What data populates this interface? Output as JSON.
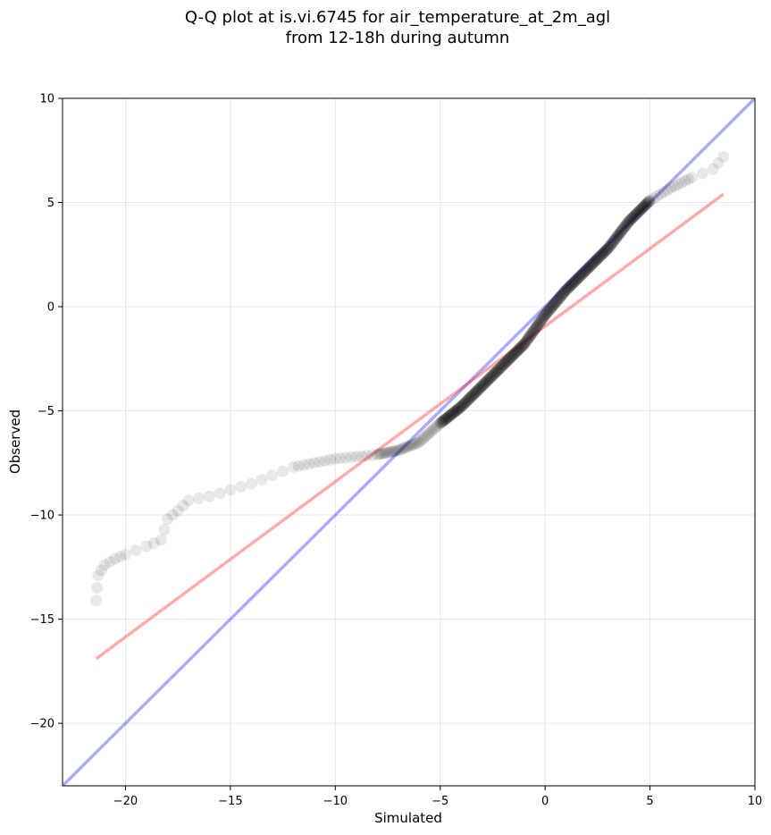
{
  "chart_data": {
    "type": "scatter",
    "title_line1": "Q-Q plot at is.vi.6745 for air_temperature_at_2m_agl",
    "title_line2": "from 12-18h during autumn",
    "xlabel": "Simulated",
    "ylabel": "Observed",
    "xlim": [
      -23,
      10
    ],
    "ylim": [
      -23,
      10
    ],
    "xticks": [
      -20,
      -15,
      -10,
      -5,
      0,
      5,
      10
    ],
    "yticks": [
      -20,
      -15,
      -10,
      -5,
      0,
      5,
      10
    ],
    "xtick_labels": [
      "−20",
      "−15",
      "−10",
      "−5",
      "0",
      "5",
      "10"
    ],
    "ytick_labels": [
      "−20",
      "−15",
      "−10",
      "−5",
      "0",
      "5",
      "10"
    ],
    "grid": true,
    "colors": {
      "points": "#000000",
      "identity_line": "#0000ff",
      "fit_line": "#ff0000"
    },
    "identity_line": {
      "x": [
        -23,
        10
      ],
      "y": [
        -23,
        10
      ]
    },
    "fit_line": {
      "x": [
        -21.4,
        8.5
      ],
      "y": [
        -16.9,
        5.4
      ]
    },
    "quantile_curve": {
      "x": [
        -21.4,
        -21.3,
        -21.0,
        -20.5,
        -20.0,
        -19.0,
        -18.3,
        -18.0,
        -17.5,
        -17.0,
        -16.0,
        -15.0,
        -14.0,
        -13.0,
        -12.0,
        -11.0,
        -10.0,
        -9.0,
        -8.0,
        -7.0,
        -6.0,
        -5.0,
        -4.0,
        -3.0,
        -2.0,
        -1.0,
        0.0,
        1.0,
        2.0,
        3.0,
        4.0,
        5.0,
        6.0,
        7.0,
        8.0,
        8.5
      ],
      "y": [
        -14.1,
        -12.9,
        -12.4,
        -12.1,
        -11.9,
        -11.5,
        -11.2,
        -10.2,
        -9.8,
        -9.3,
        -9.1,
        -8.8,
        -8.5,
        -8.1,
        -7.7,
        -7.5,
        -7.3,
        -7.2,
        -7.1,
        -6.9,
        -6.5,
        -5.6,
        -4.8,
        -3.8,
        -2.8,
        -1.8,
        -0.4,
        0.8,
        1.8,
        2.8,
        4.1,
        5.1,
        5.7,
        6.2,
        6.6,
        7.2
      ]
    }
  }
}
